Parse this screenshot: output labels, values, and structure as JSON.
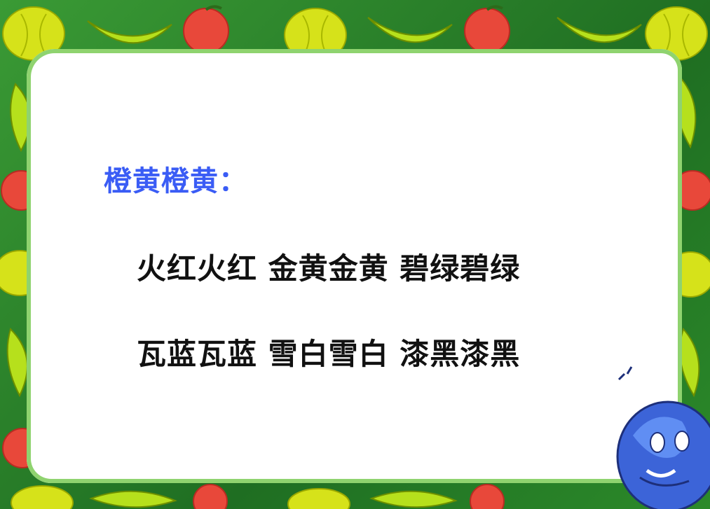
{
  "slide": {
    "heading": "橙黄橙黄：",
    "lines": [
      "火红火红 金黄金黄 碧绿碧绿",
      "瓦蓝瓦蓝 雪白雪白 漆黑漆黑"
    ]
  },
  "colors": {
    "heading": "#3a5cf5",
    "text": "#111111",
    "border_green": "#2f8a2c",
    "fruit_yellow": "#d6e21a",
    "fruit_red": "#e8483a",
    "banana": "#b6e01c",
    "mascot_blue": "#3c64d8"
  },
  "decor_icons": [
    "pumpkin-icon",
    "banana-icon",
    "apple-icon",
    "globe-mascot-icon"
  ]
}
